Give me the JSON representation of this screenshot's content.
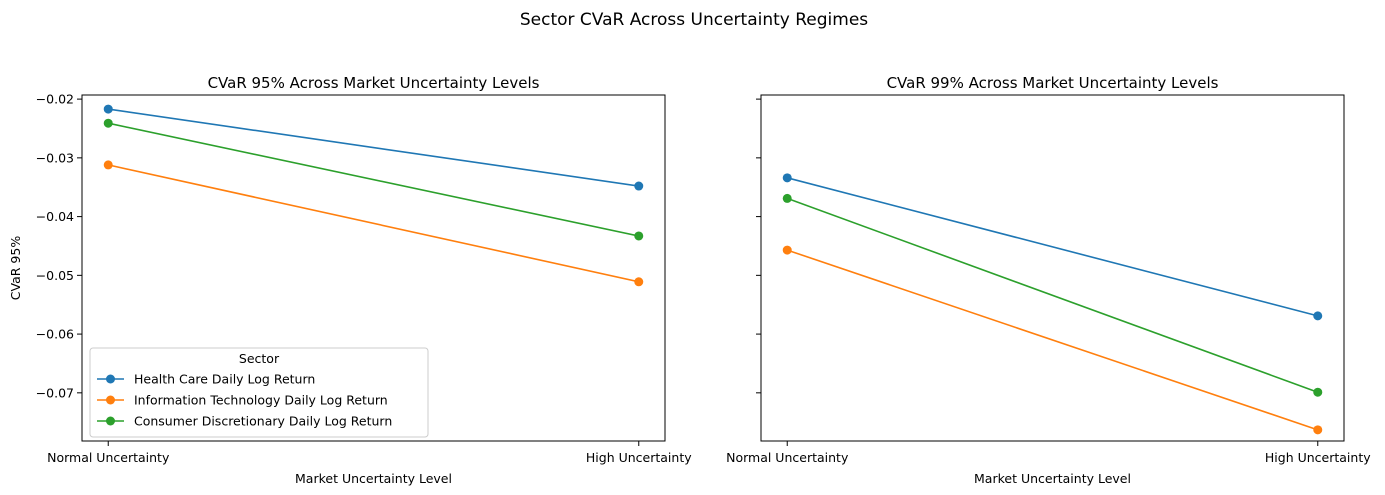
{
  "figure": {
    "suptitle": "Sector CVaR Across Uncertainty Regimes"
  },
  "chart_data": [
    {
      "type": "line",
      "title": "CVaR 95% Across Market Uncertainty Levels",
      "xlabel": "Market Uncertainty Level",
      "ylabel": "CVaR 95%",
      "categories": [
        "Normal Uncertainty",
        "High Uncertainty"
      ],
      "ylim": [
        -0.0782,
        -0.0193
      ],
      "yticks": [
        -0.02,
        -0.03,
        -0.04,
        -0.05,
        -0.06,
        -0.07
      ],
      "ytick_labels": [
        "−0.02",
        "−0.03",
        "−0.04",
        "−0.05",
        "−0.06",
        "−0.07"
      ],
      "grid": false,
      "legend": {
        "title": "Sector",
        "placement": "lower-left"
      },
      "series": [
        {
          "name": "Health Care Daily Log Return",
          "color": "#1f77b4",
          "values": [
            -0.0217,
            -0.0348
          ]
        },
        {
          "name": "Information Technology Daily Log Return",
          "color": "#ff7f0e",
          "values": [
            -0.0312,
            -0.0511
          ]
        },
        {
          "name": "Consumer Discretionary Daily Log Return",
          "color": "#2ca02c",
          "values": [
            -0.0241,
            -0.0433
          ]
        }
      ]
    },
    {
      "type": "line",
      "title": "CVaR 99% Across Market Uncertainty Levels",
      "xlabel": "Market Uncertainty Level",
      "ylabel": "",
      "categories": [
        "Normal Uncertainty",
        "High Uncertainty"
      ],
      "ylim": [
        -0.0782,
        -0.0193
      ],
      "yticks": [
        -0.02,
        -0.03,
        -0.04,
        -0.05,
        -0.06,
        -0.07
      ],
      "ytick_labels": [
        "",
        "",
        "",
        "",
        "",
        ""
      ],
      "grid": false,
      "legend": null,
      "series": [
        {
          "name": "",
          "color": "#1f77b4",
          "values": [
            -0.0334,
            -0.0569
          ]
        },
        {
          "name": "",
          "color": "#ff7f0e",
          "values": [
            -0.0457,
            -0.0763
          ]
        },
        {
          "name": "",
          "color": "#2ca02c",
          "values": [
            -0.0369,
            -0.0699
          ]
        }
      ]
    }
  ]
}
